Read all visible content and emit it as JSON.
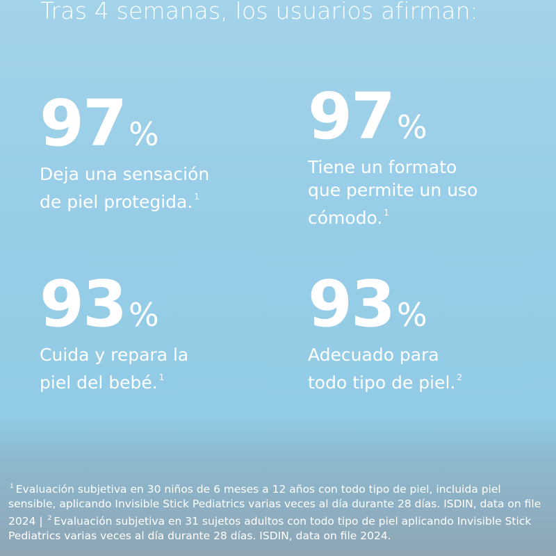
{
  "header": {
    "title": "Tras 4 semanas, los usuarios afirman:"
  },
  "stats": [
    {
      "value": "97",
      "unit": "%",
      "lines": [
        "Deja una sensación",
        "de piel protegida."
      ],
      "note": "1"
    },
    {
      "value": "97",
      "unit": "%",
      "lines": [
        "Tiene un formato",
        "que permite un uso",
        "cómodo."
      ],
      "note": "1"
    },
    {
      "value": "93",
      "unit": "%",
      "lines": [
        "Cuida y repara la",
        "piel del bebé."
      ],
      "note": "1"
    },
    {
      "value": "93",
      "unit": "%",
      "lines": [
        "Adecuado para",
        "todo tipo de piel."
      ],
      "note": "2"
    }
  ],
  "footnotes": [
    {
      "mark": "1",
      "text": "Evaluación subjetiva en 30 niños de 6 meses a 12 años con todo tipo de piel, incluida piel sensible, aplicando Invisible Stick Pediatrics varias veces al día durante 28 días. ISDIN, data on file 2024 |"
    },
    {
      "mark": "2",
      "text": "Evaluación subjetiva en 31 sujetos adultos con todo tipo de piel aplicando Invisible Stick Pediatrics varias veces al día durante 28 días. ISDIN, data on file 2024."
    }
  ]
}
